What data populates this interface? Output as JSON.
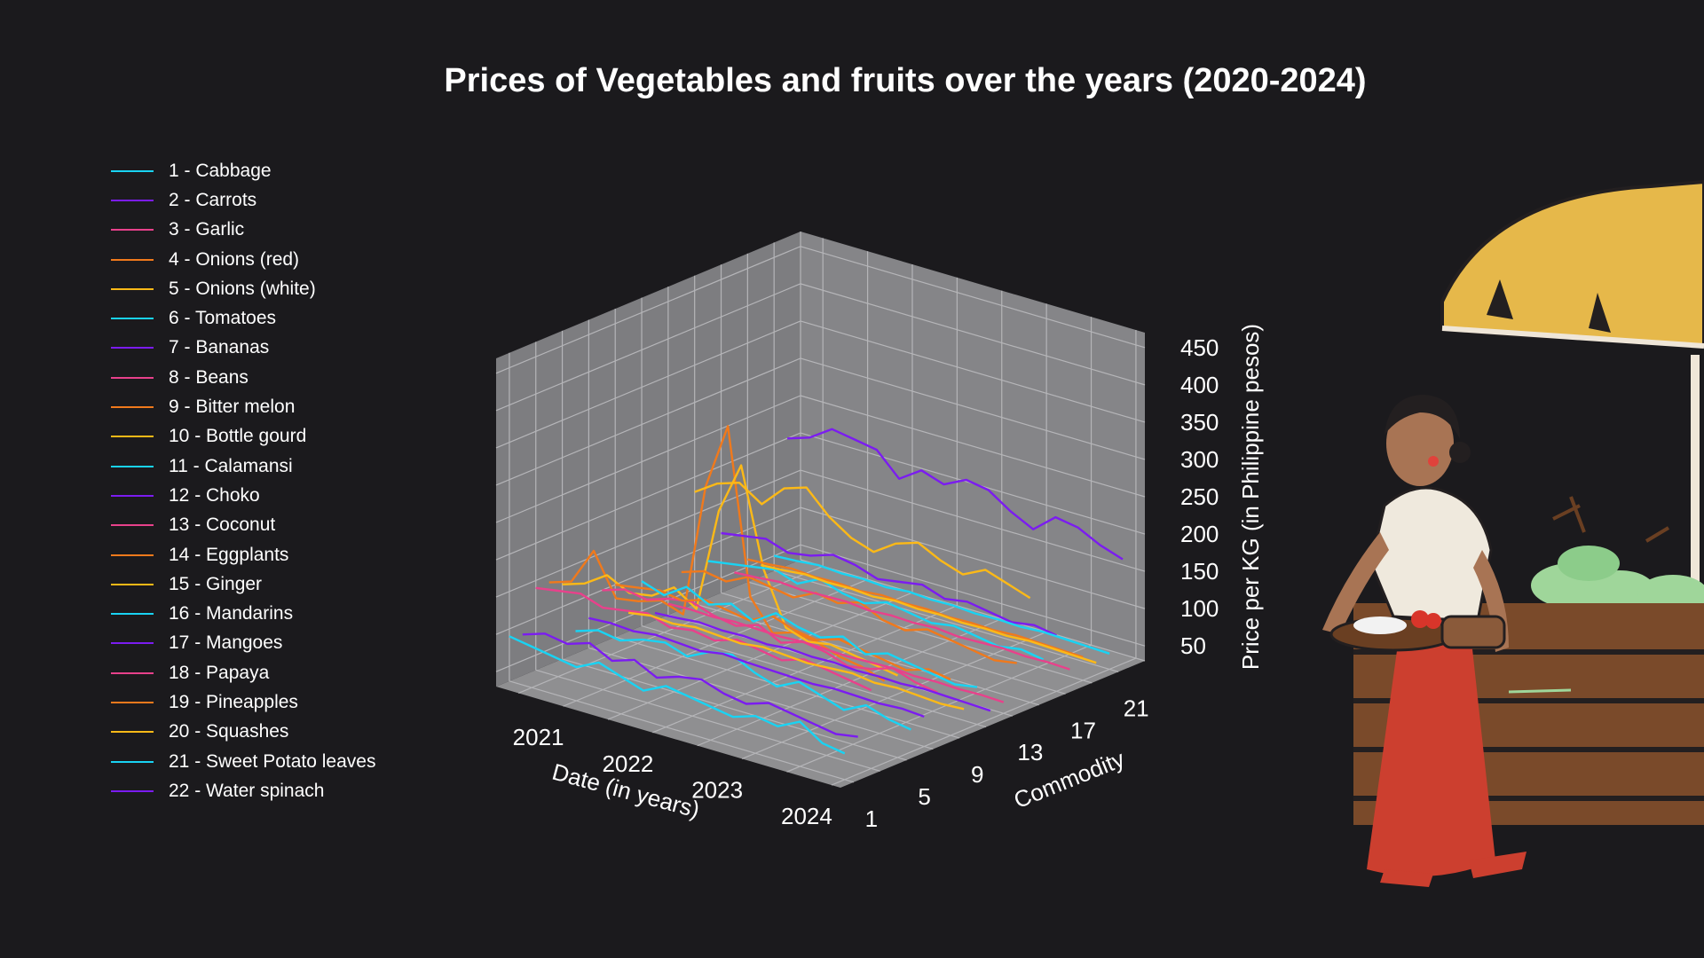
{
  "chart_data": {
    "type": "line",
    "projection": "3d",
    "title": "Prices of Vegetables and fruits over the years (2020-2024)",
    "xlabel": "Date (in years)",
    "ylabel": "Commodity",
    "zlabel": "Price per KG (in Philippine pesos)",
    "x_ticks": [
      "2021",
      "2022",
      "2023",
      "2024"
    ],
    "x_range": [
      2020.25,
      2024.1
    ],
    "y_ticks": [
      1,
      5,
      9,
      13,
      17,
      21
    ],
    "y_range": [
      0,
      23
    ],
    "z_ticks": [
      50,
      100,
      150,
      200,
      250,
      300,
      350,
      400,
      450
    ],
    "z_range": [
      30,
      470
    ],
    "legend_position": "left",
    "grid": true,
    "series": [
      {
        "id": 1,
        "label": "1 - Cabbage",
        "color": "#19d3f3"
      },
      {
        "id": 2,
        "label": "2 - Carrots",
        "color": "#7b1cf0"
      },
      {
        "id": 3,
        "label": "3 - Garlic",
        "color": "#e8418b"
      },
      {
        "id": 4,
        "label": "4 - Onions (red)",
        "color": "#f0791c"
      },
      {
        "id": 5,
        "label": "5 - Onions (white)",
        "color": "#fcb917"
      },
      {
        "id": 6,
        "label": "6 - Tomatoes",
        "color": "#19d3f3"
      },
      {
        "id": 7,
        "label": "7 - Bananas",
        "color": "#7b1cf0"
      },
      {
        "id": 8,
        "label": "8 - Beans",
        "color": "#e8418b"
      },
      {
        "id": 9,
        "label": "9 - Bitter melon",
        "color": "#f0791c"
      },
      {
        "id": 10,
        "label": "10 - Bottle gourd",
        "color": "#fcb917"
      },
      {
        "id": 11,
        "label": "11 - Calamansi",
        "color": "#19d3f3"
      },
      {
        "id": 12,
        "label": "12 - Choko",
        "color": "#7b1cf0"
      },
      {
        "id": 13,
        "label": "13 - Coconut",
        "color": "#e8418b"
      },
      {
        "id": 14,
        "label": "14 - Eggplants",
        "color": "#f0791c"
      },
      {
        "id": 15,
        "label": "15 - Ginger",
        "color": "#fcb917"
      },
      {
        "id": 16,
        "label": "16 - Mandarins",
        "color": "#19d3f3"
      },
      {
        "id": 17,
        "label": "17 - Mangoes",
        "color": "#7b1cf0"
      },
      {
        "id": 18,
        "label": "18 - Papaya",
        "color": "#e8418b"
      },
      {
        "id": 19,
        "label": "19 - Pineapples",
        "color": "#f0791c"
      },
      {
        "id": 20,
        "label": "20 - Squashes",
        "color": "#fcb917"
      },
      {
        "id": 21,
        "label": "21 - Sweet Potato leaves",
        "color": "#19d3f3"
      },
      {
        "id": 22,
        "label": "22 - Water spinach",
        "color": "#7b1cf0"
      }
    ],
    "x": [
      2020.25,
      2020.5,
      2020.75,
      2021,
      2021.25,
      2021.5,
      2021.75,
      2022,
      2022.25,
      2022.5,
      2022.75,
      2023,
      2023.25,
      2023.5,
      2023.75,
      2024
    ],
    "values": {
      "1": [
        90,
        85,
        80,
        75,
        90,
        80,
        70,
        85,
        80,
        75,
        70,
        80,
        75,
        90,
        70,
        65
      ],
      "2": [
        85,
        95,
        90,
        100,
        85,
        95,
        80,
        90,
        95,
        85,
        80,
        90,
        85,
        80,
        75,
        80
      ],
      "3": [
        140,
        145,
        150,
        140,
        145,
        150,
        140,
        145,
        140,
        150,
        145,
        140,
        150,
        145,
        140,
        135
      ],
      "4": [
        140,
        150,
        200,
        145,
        150,
        160,
        150,
        330,
        420,
        200,
        160,
        170,
        165,
        155,
        150,
        140
      ],
      "5": [
        130,
        140,
        160,
        145,
        150,
        170,
        150,
        290,
        360,
        230,
        160,
        150,
        155,
        150,
        145,
        140
      ],
      "6": [
        60,
        70,
        65,
        75,
        80,
        70,
        85,
        90,
        75,
        65,
        80,
        70,
        60,
        75,
        65,
        60
      ],
      "7": [
        70,
        72,
        70,
        74,
        72,
        70,
        75,
        73,
        72,
        71,
        70,
        72,
        71,
        70,
        72,
        70
      ],
      "8": [
        100,
        110,
        105,
        115,
        120,
        110,
        105,
        115,
        100,
        110,
        105,
        95,
        100,
        110,
        100,
        95
      ],
      "9": [
        100,
        105,
        110,
        105,
        115,
        110,
        105,
        120,
        110,
        105,
        115,
        110,
        105,
        100,
        110,
        105
      ],
      "10": [
        55,
        60,
        58,
        62,
        60,
        58,
        62,
        60,
        58,
        60,
        62,
        58,
        60,
        58,
        56,
        58
      ],
      "11": [
        90,
        80,
        100,
        85,
        95,
        80,
        100,
        90,
        85,
        95,
        80,
        90,
        85,
        80,
        75,
        80
      ],
      "12": [
        40,
        42,
        45,
        43,
        44,
        42,
        45,
        43,
        44,
        42,
        43,
        42,
        44,
        43,
        42,
        41
      ],
      "13": [
        45,
        46,
        45,
        47,
        46,
        45,
        47,
        46,
        45,
        46,
        47,
        45,
        46,
        45,
        46,
        45
      ],
      "14": [
        80,
        90,
        85,
        100,
        95,
        90,
        105,
        100,
        110,
        95,
        90,
        100,
        95,
        90,
        85,
        90
      ],
      "15": [
        180,
        200,
        210,
        190,
        220,
        230,
        200,
        180,
        170,
        190,
        200,
        185,
        175,
        190,
        180,
        170
      ],
      "16": [
        80,
        85,
        90,
        95,
        85,
        100,
        90,
        85,
        95,
        90,
        85,
        90,
        85,
        80,
        85,
        80
      ],
      "17": [
        110,
        115,
        120,
        110,
        115,
        125,
        120,
        110,
        115,
        120,
        110,
        115,
        110,
        105,
        110,
        105
      ],
      "18": [
        50,
        52,
        55,
        53,
        54,
        55,
        52,
        54,
        53,
        55,
        52,
        53,
        54,
        52,
        53,
        52
      ],
      "19": [
        60,
        62,
        65,
        63,
        64,
        62,
        65,
        63,
        64,
        62,
        63,
        62,
        64,
        63,
        62,
        61
      ],
      "20": [
        45,
        47,
        50,
        48,
        49,
        47,
        50,
        48,
        49,
        47,
        48,
        47,
        49,
        48,
        47,
        46
      ],
      "21": [
        50,
        52,
        55,
        53,
        54,
        52,
        55,
        53,
        54,
        52,
        53,
        52,
        54,
        53,
        52,
        51
      ],
      "22": [
        200,
        210,
        230,
        225,
        220,
        190,
        210,
        200,
        215,
        210,
        190,
        175,
        200,
        195,
        180,
        170
      ]
    }
  }
}
